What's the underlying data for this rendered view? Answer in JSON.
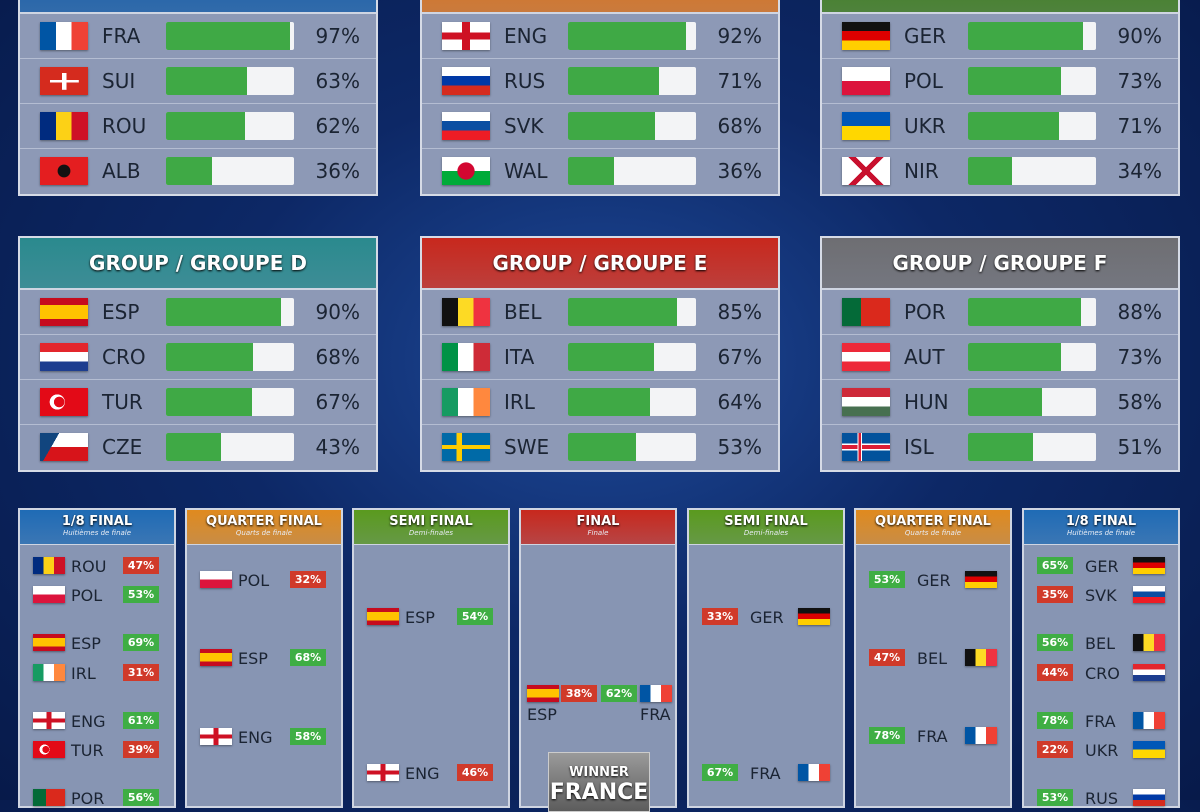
{
  "groups": [
    {
      "title": "",
      "color": "#1a5fa8",
      "teams": [
        {
          "code": "FRA",
          "pct": 97
        },
        {
          "code": "SUI",
          "pct": 63
        },
        {
          "code": "ROU",
          "pct": 62
        },
        {
          "code": "ALB",
          "pct": 36
        }
      ]
    },
    {
      "title": "",
      "color": "#d9731f",
      "teams": [
        {
          "code": "ENG",
          "pct": 92
        },
        {
          "code": "RUS",
          "pct": 71
        },
        {
          "code": "SVK",
          "pct": 68
        },
        {
          "code": "WAL",
          "pct": 36
        }
      ]
    },
    {
      "title": "",
      "color": "#3f7d1e",
      "teams": [
        {
          "code": "GER",
          "pct": 90
        },
        {
          "code": "POL",
          "pct": 73
        },
        {
          "code": "UKR",
          "pct": 71
        },
        {
          "code": "NIR",
          "pct": 34
        }
      ]
    },
    {
      "title": "GROUP / GROUPE D",
      "color": "#2a8a8e",
      "teams": [
        {
          "code": "ESP",
          "pct": 90
        },
        {
          "code": "CRO",
          "pct": 68
        },
        {
          "code": "TUR",
          "pct": 67
        },
        {
          "code": "CZE",
          "pct": 43
        }
      ]
    },
    {
      "title": "GROUP / GROUPE E",
      "color": "#c8281d",
      "teams": [
        {
          "code": "BEL",
          "pct": 85
        },
        {
          "code": "ITA",
          "pct": 67
        },
        {
          "code": "IRL",
          "pct": 64
        },
        {
          "code": "SWE",
          "pct": 53
        }
      ]
    },
    {
      "title": "GROUP / GROUPE F",
      "color": "#6e6e72",
      "teams": [
        {
          "code": "POR",
          "pct": 88
        },
        {
          "code": "AUT",
          "pct": 73
        },
        {
          "code": "HUN",
          "pct": 58
        },
        {
          "code": "ISL",
          "pct": 51
        }
      ]
    }
  ],
  "rounds": [
    {
      "title": "1/8 FINAL",
      "subtitle": "Huitièmes de finale",
      "color": "#1f6bb5"
    },
    {
      "title": "QUARTER FINAL",
      "subtitle": "Quarts de finale",
      "color": "#e08a1e"
    },
    {
      "title": "SEMI FINAL",
      "subtitle": "Demi-finales",
      "color": "#5a9a1e"
    },
    {
      "title": "FINAL",
      "subtitle": "Finale",
      "color": "#c8281d"
    },
    {
      "title": "SEMI FINAL",
      "subtitle": "Demi-finales",
      "color": "#5a9a1e"
    },
    {
      "title": "QUARTER FINAL",
      "subtitle": "Quarts de finale",
      "color": "#e08a1e"
    },
    {
      "title": "1/8 FINAL",
      "subtitle": "Huitièmes de finale",
      "color": "#1f6bb5"
    }
  ],
  "bracket": {
    "left_r16": [
      {
        "code": "ROU",
        "pct": "47%",
        "win": false
      },
      {
        "code": "POL",
        "pct": "53%",
        "win": true
      },
      {
        "code": "ESP",
        "pct": "69%",
        "win": true
      },
      {
        "code": "IRL",
        "pct": "31%",
        "win": false
      },
      {
        "code": "ENG",
        "pct": "61%",
        "win": true
      },
      {
        "code": "TUR",
        "pct": "39%",
        "win": false
      },
      {
        "code": "POR",
        "pct": "56%",
        "win": true
      }
    ],
    "left_qf": [
      {
        "code": "POL",
        "pct": "32%",
        "win": false
      },
      {
        "code": "ESP",
        "pct": "68%",
        "win": true
      },
      {
        "code": "ENG",
        "pct": "58%",
        "win": true
      }
    ],
    "left_sf": [
      {
        "code": "ESP",
        "pct": "54%",
        "win": true
      },
      {
        "code": "ENG",
        "pct": "46%",
        "win": false
      }
    ],
    "final": [
      {
        "code": "ESP",
        "pct": "38%",
        "win": false
      },
      {
        "code": "FRA",
        "pct": "62%",
        "win": true
      }
    ],
    "right_sf": [
      {
        "code": "GER",
        "pct": "33%",
        "win": false
      },
      {
        "code": "FRA",
        "pct": "67%",
        "win": true
      }
    ],
    "right_qf": [
      {
        "code": "GER",
        "pct": "53%",
        "win": true
      },
      {
        "code": "BEL",
        "pct": "47%",
        "win": false
      },
      {
        "code": "FRA",
        "pct": "78%",
        "win": true
      }
    ],
    "right_r16": [
      {
        "code": "GER",
        "pct": "65%",
        "win": true
      },
      {
        "code": "SVK",
        "pct": "35%",
        "win": false
      },
      {
        "code": "BEL",
        "pct": "56%",
        "win": true
      },
      {
        "code": "CRO",
        "pct": "44%",
        "win": false
      },
      {
        "code": "FRA",
        "pct": "78%",
        "win": true
      },
      {
        "code": "UKR",
        "pct": "22%",
        "win": false
      },
      {
        "code": "RUS",
        "pct": "53%",
        "win": true
      }
    ]
  },
  "winner": {
    "label": "WINNER",
    "team": "FRANCE"
  },
  "colors": {
    "win": "#3fae44",
    "lose": "#d03a2a",
    "bar": "#3fa945"
  }
}
